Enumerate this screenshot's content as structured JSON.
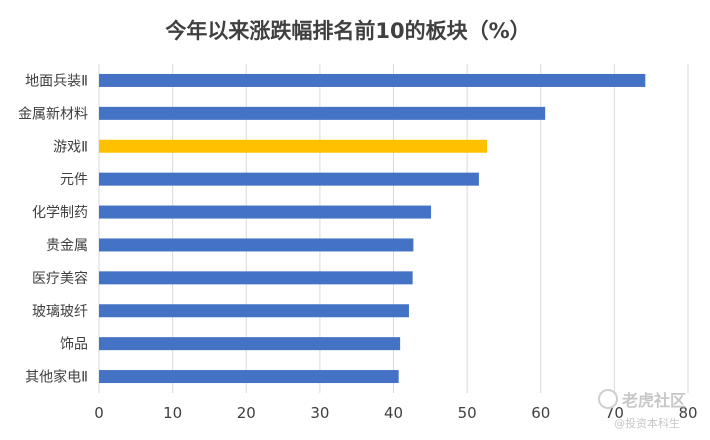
{
  "chart_data": {
    "type": "bar",
    "orientation": "horizontal",
    "title": "今年以来涨跌幅排名前10的板块（%）",
    "categories": [
      "地面兵装Ⅱ",
      "金属新材料",
      "游戏Ⅱ",
      "元件",
      "化学制药",
      "贵金属",
      "医疗美容",
      "玻璃玻纤",
      "饰品",
      "其他家电Ⅱ"
    ],
    "values": [
      74.2,
      60.6,
      52.7,
      51.6,
      45.1,
      42.7,
      42.6,
      42.1,
      40.9,
      40.7
    ],
    "highlight_index": 2,
    "xlim": [
      0,
      80
    ],
    "xticks": [
      0,
      10,
      20,
      30,
      40,
      50,
      60,
      70,
      80
    ],
    "grid": true,
    "colors": {
      "bar": "#4472c4",
      "highlight": "#ffc000",
      "grid": "#d9d9d9",
      "text": "#404040"
    }
  },
  "watermark": {
    "brand": "老虎社区",
    "handle": "@投资本科生"
  }
}
